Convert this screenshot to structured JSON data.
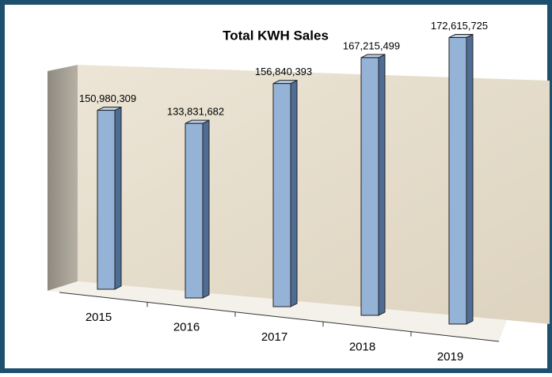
{
  "chart_data": {
    "type": "bar3d",
    "title": "Total KWH Sales",
    "categories": [
      "2015",
      "2016",
      "2017",
      "2018",
      "2019"
    ],
    "values": [
      150980309,
      133831682,
      156840393,
      167215499,
      172615725
    ],
    "value_labels": [
      "150,980,309",
      "133,831,682",
      "156,840,393",
      "167,215,499",
      "172,615,725"
    ],
    "color": "#95b3d7",
    "ylim": [
      0,
      200000000
    ]
  }
}
